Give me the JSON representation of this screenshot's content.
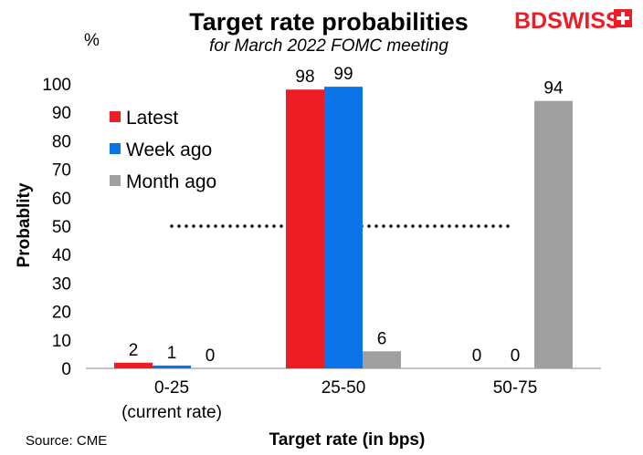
{
  "chart_data": {
    "type": "bar",
    "title": "Target rate probabilities",
    "subtitle": "for March 2022 FOMC meeting",
    "ylabel": "Probablity",
    "y_unit": "%",
    "xlabel": "Target rate (in bps)",
    "source": "Source: CME",
    "categories": [
      {
        "line1": "0-25",
        "line2": "(current rate)"
      },
      {
        "line1": "25-50",
        "line2": ""
      },
      {
        "line1": "50-75",
        "line2": ""
      }
    ],
    "series": [
      {
        "name": "Latest",
        "color": "#ee1c25",
        "values": [
          2,
          98,
          0
        ]
      },
      {
        "name": "Week ago",
        "color": "#0b74e8",
        "values": [
          1,
          99,
          0
        ]
      },
      {
        "name": "Month ago",
        "color": "#a0a0a0",
        "values": [
          0,
          6,
          94
        ]
      }
    ],
    "ylim": [
      0,
      100
    ],
    "yticks": [
      "0",
      "10",
      "20",
      "30",
      "40",
      "50",
      "60",
      "70",
      "80",
      "90",
      "100"
    ],
    "reference_line": {
      "y": 50,
      "style": "dotted"
    },
    "grid": false,
    "legend_position": "top-left",
    "data_labels": true
  },
  "brand": {
    "logo_text_bd": "BD",
    "logo_text_swiss": "SWISS",
    "color": "#ee1c25"
  }
}
